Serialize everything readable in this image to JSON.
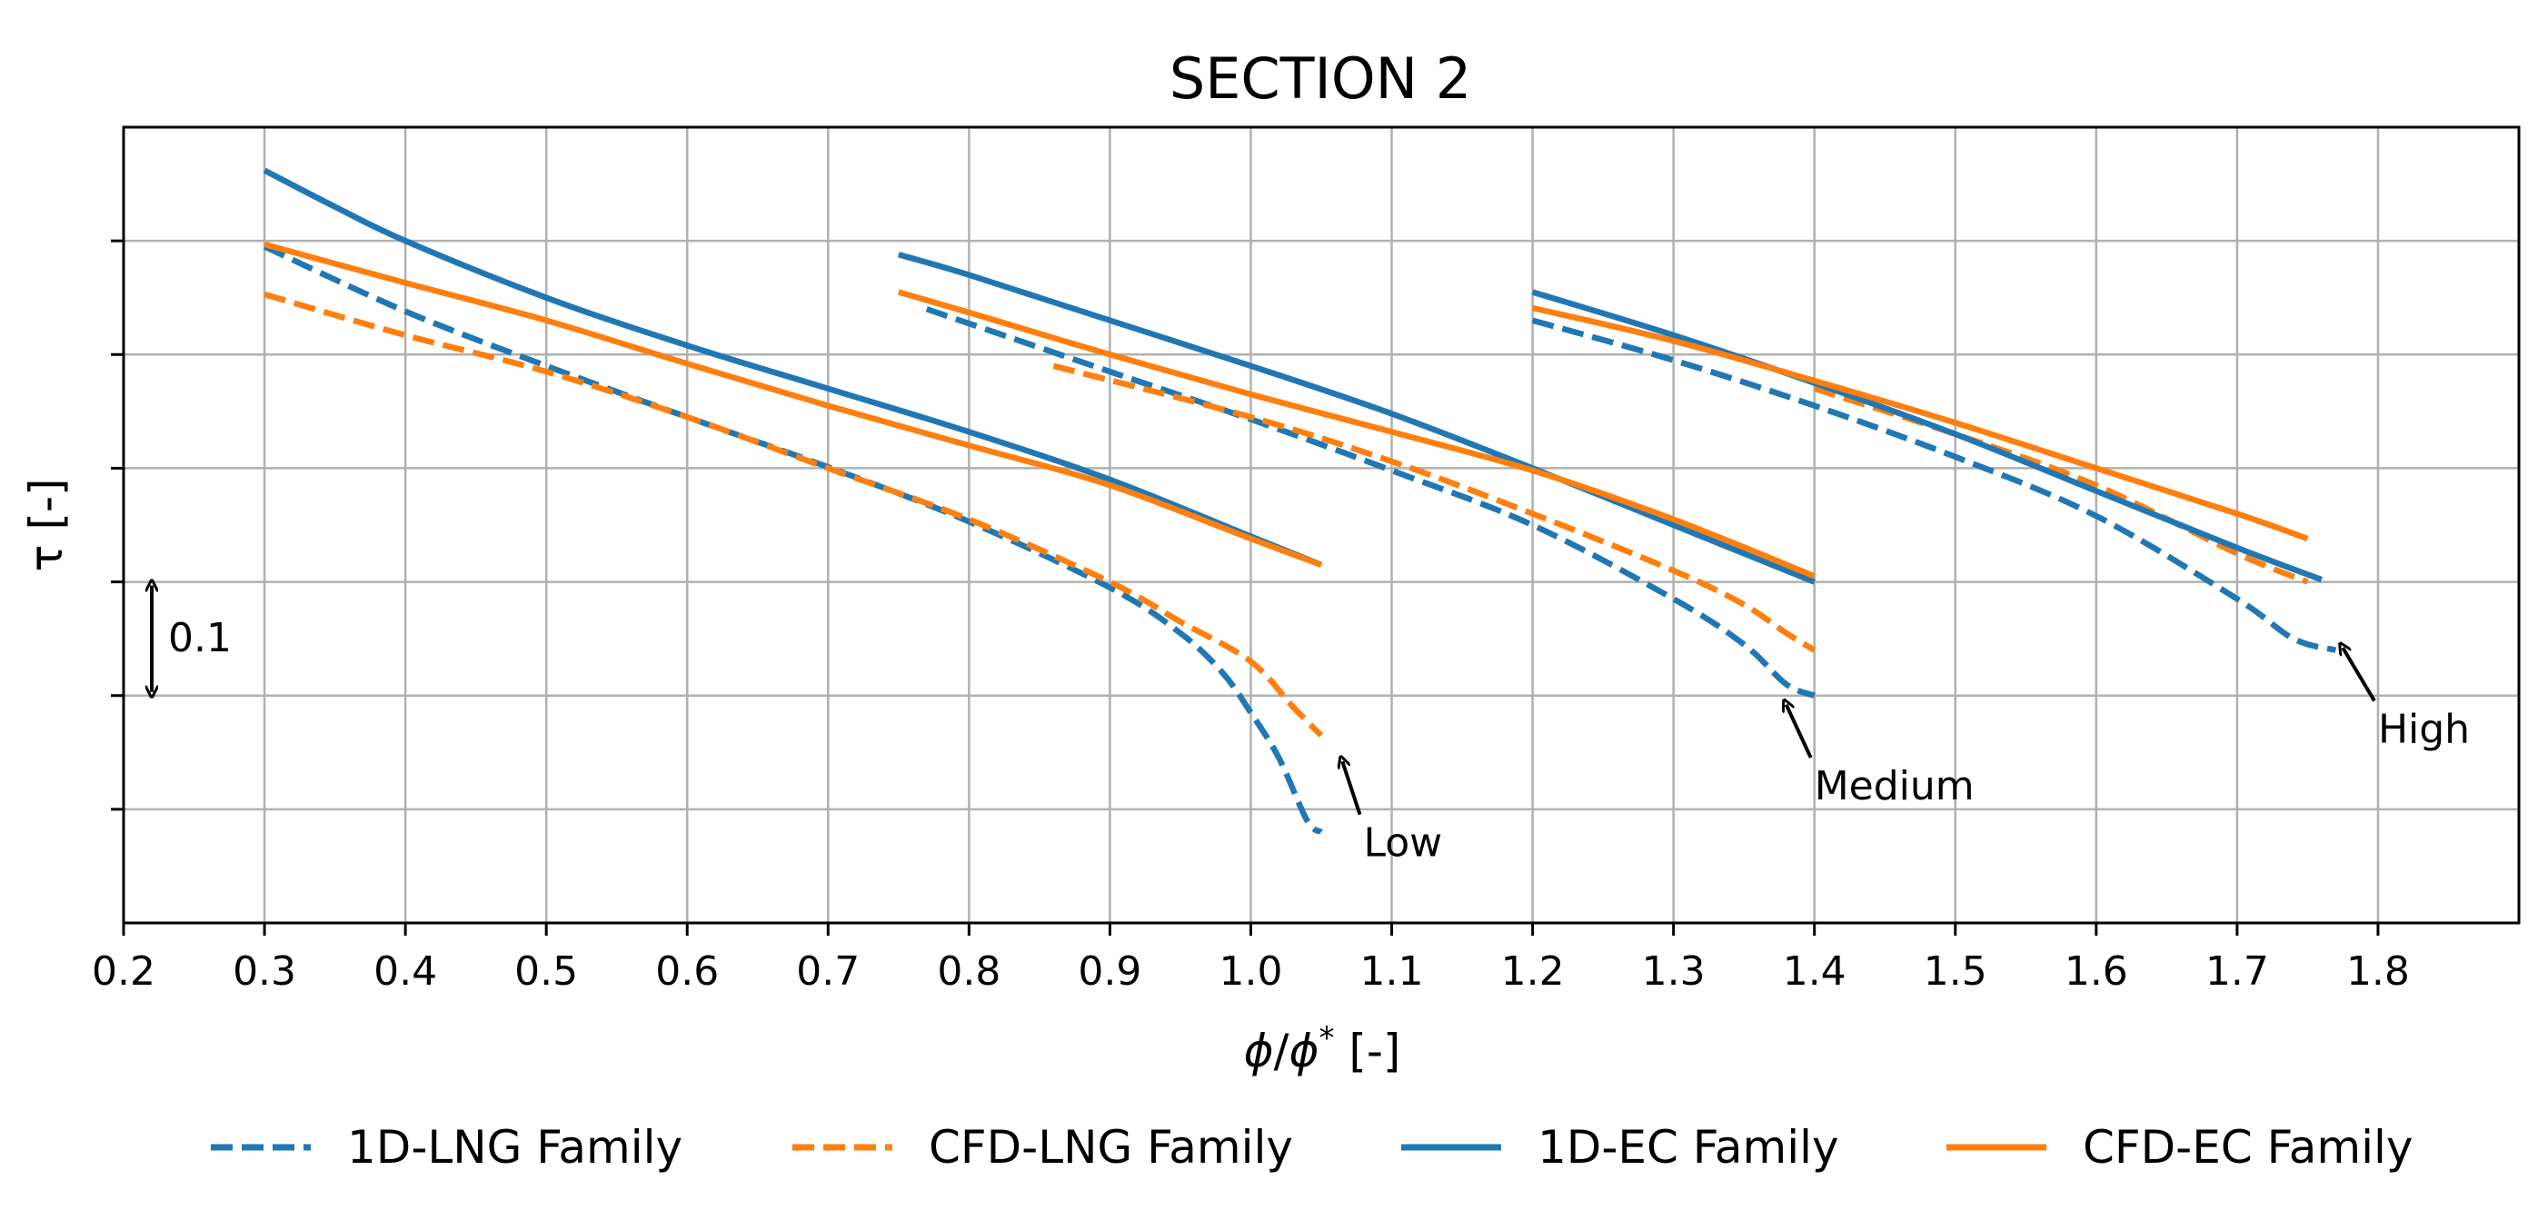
{
  "chart_data": {
    "type": "line",
    "title": "SECTION 2",
    "xlabel": "ϕ/ϕ* [-]",
    "xlabel_parts": {
      "phi": "ϕ",
      "slash": "/",
      "star": "*",
      "unit": " [-]"
    },
    "ylabel": "τ [-]",
    "xlim": [
      0.2,
      1.9
    ],
    "ylim": [
      0.0,
      0.7
    ],
    "x_ticks": [
      0.2,
      0.3,
      0.4,
      0.5,
      0.6,
      0.7,
      0.8,
      0.9,
      1.0,
      1.1,
      1.2,
      1.3,
      1.4,
      1.5,
      1.6,
      1.7,
      1.8
    ],
    "x_tick_labels": [
      "0.2",
      "0.3",
      "0.4",
      "0.5",
      "0.6",
      "0.7",
      "0.8",
      "0.9",
      "1.0",
      "1.1",
      "1.2",
      "1.3",
      "1.4",
      "1.5",
      "1.6",
      "1.7",
      "1.8"
    ],
    "y_ticks": [
      0.1,
      0.2,
      0.3,
      0.4,
      0.5,
      0.6
    ],
    "grid": true,
    "scale_bar": {
      "x": 0.22,
      "from": 0.2,
      "to": 0.3,
      "label": "0.1"
    },
    "series": [
      {
        "name": "1D-LNG Family",
        "color": "#1f77b4",
        "style": "dashed",
        "curves": [
          {
            "x": [
              0.3,
              0.4,
              0.5,
              0.6,
              0.7,
              0.8,
              0.9,
              0.95,
              0.98,
              1.0,
              1.02,
              1.04,
              1.05
            ],
            "y": [
              0.595,
              0.538,
              0.49,
              0.445,
              0.401,
              0.353,
              0.295,
              0.255,
              0.22,
              0.185,
              0.145,
              0.09,
              0.08
            ]
          },
          {
            "x": [
              0.77,
              0.9,
              1.0,
              1.1,
              1.2,
              1.3,
              1.35,
              1.38,
              1.4
            ],
            "y": [
              0.54,
              0.485,
              0.443,
              0.398,
              0.35,
              0.285,
              0.245,
              0.21,
              0.2
            ]
          },
          {
            "x": [
              1.2,
              1.3,
              1.4,
              1.5,
              1.6,
              1.7,
              1.74,
              1.77
            ],
            "y": [
              0.53,
              0.495,
              0.455,
              0.41,
              0.358,
              0.285,
              0.25,
              0.24
            ]
          }
        ]
      },
      {
        "name": "CFD-LNG Family",
        "color": "#ff7f0e",
        "style": "dashed",
        "curves": [
          {
            "x": [
              0.3,
              0.4,
              0.5,
              0.6,
              0.7,
              0.8,
              0.9,
              0.95,
              1.0,
              1.03,
              1.05
            ],
            "y": [
              0.553,
              0.517,
              0.485,
              0.445,
              0.4,
              0.355,
              0.3,
              0.265,
              0.23,
              0.19,
              0.165
            ]
          },
          {
            "x": [
              0.86,
              1.0,
              1.1,
              1.2,
              1.3,
              1.35,
              1.38,
              1.4
            ],
            "y": [
              0.49,
              0.445,
              0.406,
              0.36,
              0.31,
              0.28,
              0.255,
              0.24
            ]
          },
          {
            "x": [
              1.4,
              1.5,
              1.6,
              1.7,
              1.75
            ],
            "y": [
              0.47,
              0.43,
              0.385,
              0.325,
              0.3
            ]
          }
        ]
      },
      {
        "name": "1D-EC Family",
        "color": "#1f77b4",
        "style": "solid",
        "curves": [
          {
            "x": [
              0.3,
              0.35,
              0.4,
              0.5,
              0.6,
              0.7,
              0.8,
              0.9,
              1.0,
              1.05
            ],
            "y": [
              0.662,
              0.63,
              0.6,
              0.55,
              0.508,
              0.47,
              0.432,
              0.39,
              0.34,
              0.315
            ]
          },
          {
            "x": [
              0.75,
              0.8,
              0.9,
              1.0,
              1.1,
              1.2,
              1.3,
              1.4
            ],
            "y": [
              0.588,
              0.57,
              0.53,
              0.49,
              0.448,
              0.4,
              0.35,
              0.3
            ]
          },
          {
            "x": [
              1.2,
              1.3,
              1.4,
              1.5,
              1.6,
              1.7,
              1.76
            ],
            "y": [
              0.555,
              0.517,
              0.475,
              0.43,
              0.38,
              0.33,
              0.302
            ]
          }
        ]
      },
      {
        "name": "CFD-EC Family",
        "color": "#ff7f0e",
        "style": "solid",
        "curves": [
          {
            "x": [
              0.3,
              0.35,
              0.4,
              0.5,
              0.6,
              0.7,
              0.8,
              0.9,
              1.0,
              1.05
            ],
            "y": [
              0.597,
              0.58,
              0.563,
              0.53,
              0.492,
              0.455,
              0.42,
              0.385,
              0.338,
              0.315
            ]
          },
          {
            "x": [
              0.75,
              0.8,
              0.9,
              1.0,
              1.1,
              1.2,
              1.3,
              1.4
            ],
            "y": [
              0.555,
              0.537,
              0.5,
              0.465,
              0.432,
              0.398,
              0.355,
              0.305
            ]
          },
          {
            "x": [
              1.2,
              1.3,
              1.4,
              1.5,
              1.6,
              1.7,
              1.75
            ],
            "y": [
              0.541,
              0.512,
              0.477,
              0.44,
              0.4,
              0.36,
              0.338
            ]
          }
        ]
      }
    ],
    "annotations": [
      {
        "text": "Low",
        "tip_x": 1.065,
        "tip_y": 0.142,
        "text_x": 1.08,
        "text_y": 0.065
      },
      {
        "text": "Medium",
        "tip_x": 1.38,
        "tip_y": 0.192,
        "text_x": 1.4,
        "text_y": 0.115
      },
      {
        "text": "High",
        "tip_x": 1.775,
        "tip_y": 0.242,
        "text_x": 1.8,
        "text_y": 0.165
      }
    ],
    "legend_position": "bottom"
  }
}
